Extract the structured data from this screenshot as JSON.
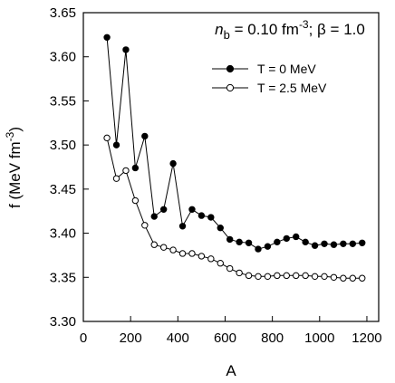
{
  "chart_data": {
    "type": "line",
    "annotation": {
      "nb_symbol": "n",
      "nb_subscript": "b",
      "nb_value": " = 0.10 fm",
      "nb_exponent": "-3",
      "beta_text": "; β = 1.0"
    },
    "xlabel": "A",
    "ylabel": {
      "main": "f (MeV fm",
      "exponent": "-3",
      "close": ")"
    },
    "xlim": [
      0,
      1250
    ],
    "ylim": [
      3.3,
      3.65
    ],
    "xticks": [
      0,
      200,
      400,
      600,
      800,
      1000,
      1200
    ],
    "xtick_labels": [
      "0",
      "200",
      "400",
      "600",
      "800",
      "1000",
      "1200"
    ],
    "yticks": [
      3.3,
      3.35,
      3.4,
      3.45,
      3.5,
      3.55,
      3.6,
      3.65
    ],
    "ytick_labels": [
      "3.30",
      "3.35",
      "3.40",
      "3.45",
      "3.50",
      "3.55",
      "3.60",
      "3.65"
    ],
    "grid": false,
    "legend_position": "top-right",
    "series": [
      {
        "name": "T = 0 MeV",
        "marker": "filled-circle",
        "color": "#000000",
        "x": [
          100,
          140,
          180,
          220,
          260,
          300,
          340,
          380,
          420,
          460,
          500,
          540,
          580,
          620,
          660,
          700,
          740,
          780,
          820,
          860,
          900,
          940,
          980,
          1020,
          1060,
          1100,
          1140,
          1180
        ],
        "y": [
          3.622,
          3.5,
          3.608,
          3.474,
          3.51,
          3.419,
          3.427,
          3.479,
          3.408,
          3.427,
          3.42,
          3.418,
          3.406,
          3.393,
          3.39,
          3.389,
          3.382,
          3.385,
          3.39,
          3.394,
          3.396,
          3.39,
          3.386,
          3.388,
          3.387,
          3.388,
          3.388,
          3.389
        ]
      },
      {
        "name": "T = 2.5 MeV",
        "marker": "open-circle",
        "color": "#000000",
        "x": [
          100,
          140,
          180,
          220,
          260,
          300,
          340,
          380,
          420,
          460,
          500,
          540,
          580,
          620,
          660,
          700,
          740,
          780,
          820,
          860,
          900,
          940,
          980,
          1020,
          1060,
          1100,
          1140,
          1180
        ],
        "y": [
          3.508,
          3.462,
          3.471,
          3.437,
          3.409,
          3.387,
          3.384,
          3.381,
          3.377,
          3.377,
          3.374,
          3.371,
          3.366,
          3.36,
          3.355,
          3.352,
          3.351,
          3.351,
          3.352,
          3.352,
          3.352,
          3.352,
          3.351,
          3.351,
          3.35,
          3.349,
          3.349,
          3.349
        ]
      }
    ]
  }
}
